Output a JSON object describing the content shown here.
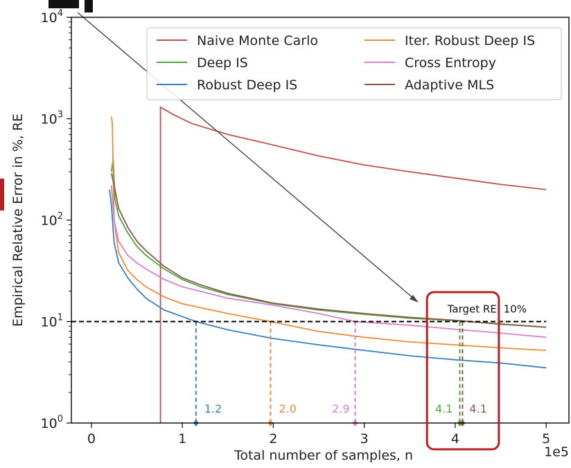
{
  "chart_data": {
    "type": "line",
    "xlabel": "Total number of samples, n",
    "ylabel": "Empirical Relative Error in %, RE",
    "x_multiplier_label": "1e5",
    "x_ticks": [
      0,
      1,
      2,
      3,
      4,
      5
    ],
    "y_ticks": [
      {
        "value": 1,
        "label": "10^0"
      },
      {
        "value": 10,
        "label": "10^1"
      },
      {
        "value": 100,
        "label": "10^2"
      },
      {
        "value": 1000,
        "label": "10^3"
      },
      {
        "value": 10000,
        "label": "10^4"
      }
    ],
    "xlim": [
      -0.22,
      5.25
    ],
    "ylim": [
      1,
      10000
    ],
    "yscale": "log",
    "grid": false,
    "legend_position": "top-right",
    "series": [
      {
        "name": "Naive Monte Carlo",
        "color": "#c0504d",
        "points": [
          [
            0.76,
            1.0
          ],
          [
            0.76,
            1300
          ],
          [
            0.9,
            1100
          ],
          [
            1.1,
            900
          ],
          [
            1.5,
            700
          ],
          [
            2.0,
            550
          ],
          [
            2.5,
            430
          ],
          [
            3.0,
            350
          ],
          [
            3.5,
            300
          ],
          [
            4.0,
            260
          ],
          [
            4.5,
            225
          ],
          [
            5.0,
            200
          ]
        ]
      },
      {
        "name": "Deep IS",
        "color": "#4aa83c",
        "points": [
          [
            0.22,
            300
          ],
          [
            0.24,
            400
          ],
          [
            0.26,
            160
          ],
          [
            0.3,
            110
          ],
          [
            0.4,
            75
          ],
          [
            0.5,
            55
          ],
          [
            0.6,
            45
          ],
          [
            0.8,
            33
          ],
          [
            1.0,
            26
          ],
          [
            1.2,
            22
          ],
          [
            1.5,
            18.5
          ],
          [
            2.0,
            15
          ],
          [
            2.5,
            13
          ],
          [
            3.0,
            11.8
          ],
          [
            3.5,
            10.8
          ],
          [
            4.0,
            10.2
          ],
          [
            4.5,
            9.5
          ],
          [
            5.0,
            8.8
          ]
        ]
      },
      {
        "name": "Robust Deep IS",
        "color": "#3a7ebf",
        "points": [
          [
            0.2,
            200
          ],
          [
            0.22,
            140
          ],
          [
            0.25,
            60
          ],
          [
            0.3,
            38
          ],
          [
            0.4,
            27
          ],
          [
            0.5,
            21
          ],
          [
            0.6,
            17
          ],
          [
            0.8,
            13
          ],
          [
            1.0,
            11.2
          ],
          [
            1.15,
            10.0
          ],
          [
            1.5,
            8.3
          ],
          [
            2.0,
            6.8
          ],
          [
            2.5,
            5.9
          ],
          [
            3.0,
            5.2
          ],
          [
            3.5,
            4.6
          ],
          [
            4.0,
            4.2
          ],
          [
            4.5,
            3.9
          ],
          [
            5.0,
            3.5
          ]
        ]
      },
      {
        "name": "Iter. Robust Deep IS",
        "color": "#ee8a3c",
        "points": [
          [
            0.22,
            1050
          ],
          [
            0.23,
            900
          ],
          [
            0.25,
            100
          ],
          [
            0.3,
            48
          ],
          [
            0.4,
            32
          ],
          [
            0.5,
            26
          ],
          [
            0.6,
            22
          ],
          [
            0.8,
            17.5
          ],
          [
            1.0,
            15
          ],
          [
            1.5,
            12
          ],
          [
            1.97,
            10.0
          ],
          [
            2.5,
            8.0
          ],
          [
            3.0,
            7.0
          ],
          [
            3.5,
            6.3
          ],
          [
            4.0,
            5.9
          ],
          [
            4.5,
            5.5
          ],
          [
            5.0,
            5.2
          ]
        ]
      },
      {
        "name": "Cross Entropy",
        "color": "#d77fcf",
        "points": [
          [
            0.22,
            220
          ],
          [
            0.25,
            100
          ],
          [
            0.3,
            62
          ],
          [
            0.4,
            45
          ],
          [
            0.5,
            38
          ],
          [
            0.6,
            33
          ],
          [
            0.8,
            26
          ],
          [
            1.0,
            22
          ],
          [
            1.5,
            17
          ],
          [
            2.0,
            14.5
          ],
          [
            2.5,
            12
          ],
          [
            2.9,
            10.0
          ],
          [
            3.5,
            9.2
          ],
          [
            4.0,
            8.4
          ],
          [
            4.5,
            7.7
          ],
          [
            5.0,
            7.0
          ]
        ]
      },
      {
        "name": "Adaptive MLS",
        "color": "#8c5a4a",
        "points": [
          [
            0.22,
            290
          ],
          [
            0.26,
            200
          ],
          [
            0.3,
            130
          ],
          [
            0.4,
            85
          ],
          [
            0.5,
            62
          ],
          [
            0.6,
            50
          ],
          [
            0.8,
            35
          ],
          [
            1.0,
            27
          ],
          [
            1.2,
            23
          ],
          [
            1.5,
            19
          ],
          [
            2.0,
            15.2
          ],
          [
            2.5,
            13.3
          ],
          [
            3.0,
            12
          ],
          [
            3.5,
            11
          ],
          [
            4.0,
            10.3
          ],
          [
            4.5,
            9.4
          ],
          [
            5.0,
            8.8
          ]
        ]
      }
    ],
    "target_line": {
      "y": 10,
      "label": "Target RE: 10%"
    },
    "threshold_markers": [
      {
        "x": 1.15,
        "label": "1.2",
        "color": "#3a7ebf"
      },
      {
        "x": 1.97,
        "label": "2.0",
        "color": "#ee8a3c"
      },
      {
        "x": 2.9,
        "label": "2.9",
        "color": "#d77fcf"
      },
      {
        "x": 4.05,
        "label": "4.1",
        "color": "#4aa83c"
      },
      {
        "x": 4.08,
        "label": "4.1",
        "color": "#8c5a4a"
      }
    ],
    "highlight_box": {
      "x_range": [
        3.69,
        4.48
      ],
      "color": "#b52020"
    }
  }
}
